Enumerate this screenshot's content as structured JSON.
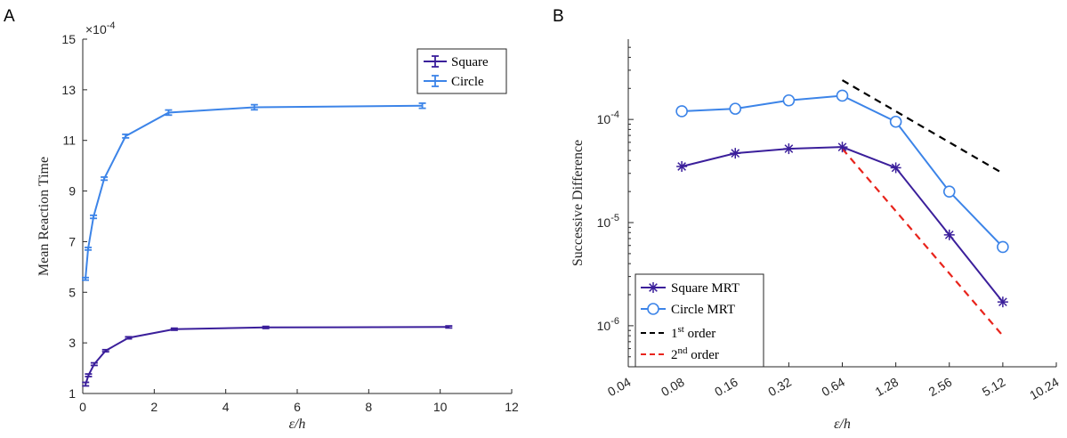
{
  "panels": {
    "A": {
      "letter": "A",
      "chart_data": {
        "type": "line",
        "xlabel": "ε/h",
        "ylabel": "Mean Reaction Time",
        "xlim": [
          0,
          12
        ],
        "ylim": [
          1,
          15
        ],
        "xticks": [
          0,
          2,
          4,
          6,
          8,
          10,
          12
        ],
        "yticks": [
          1,
          3,
          5,
          7,
          9,
          11,
          13,
          15
        ],
        "y_multiplier_base": "×10",
        "y_multiplier_exp": "-4",
        "legend_position": "top-right",
        "error_bars": true,
        "series": [
          {
            "name": "Square",
            "color": "#3b1f9b",
            "x": [
              0.08,
              0.16,
              0.32,
              0.64,
              1.28,
              2.56,
              5.12,
              10.24
            ],
            "y": [
              1.37,
              1.72,
              2.16,
              2.69,
              3.2,
              3.54,
              3.61,
              3.63
            ],
            "err": [
              0.07,
              0.05,
              0.05,
              0.04,
              0.04,
              0.04,
              0.04,
              0.04
            ]
          },
          {
            "name": "Circle",
            "color": "#3c84e8",
            "x": [
              0.075,
              0.15,
              0.3,
              0.6,
              1.2,
              2.4,
              4.8,
              9.5
            ],
            "y": [
              5.53,
              6.72,
              7.98,
              9.49,
              11.17,
              12.1,
              12.31,
              12.37
            ],
            "err": [
              0.05,
              0.05,
              0.06,
              0.06,
              0.07,
              0.1,
              0.1,
              0.1
            ]
          }
        ]
      }
    },
    "B": {
      "letter": "B",
      "chart_data": {
        "type": "line",
        "xlabel": "ε/h",
        "ylabel": "Successive Difference",
        "x_scale": "log2",
        "y_scale": "log",
        "xlim": [
          0.04,
          10.24
        ],
        "ylim": [
          4e-07,
          0.0006
        ],
        "xticks": [
          "0.04",
          "0.08",
          "0.16",
          "0.32",
          "0.64",
          "1.28",
          "2.56",
          "5.12",
          "10.24"
        ],
        "yticks": [
          {
            "value": 1e-06,
            "base": "10",
            "exp": "-6"
          },
          {
            "value": 1e-05,
            "base": "10",
            "exp": "-5"
          },
          {
            "value": 0.0001,
            "base": "10",
            "exp": "-4"
          }
        ],
        "legend_position": "bottom-left",
        "series": [
          {
            "name": "Square MRT",
            "color": "#3b1f9b",
            "marker": "asterisk",
            "x": [
              0.08,
              0.16,
              0.32,
              0.64,
              1.28,
              2.56,
              5.12
            ],
            "y": [
              3.5e-05,
              4.7e-05,
              5.2e-05,
              5.4e-05,
              3.4e-05,
              7.6e-06,
              1.7e-06
            ]
          },
          {
            "name": "Circle MRT",
            "color": "#3c84e8",
            "marker": "circle",
            "x": [
              0.08,
              0.16,
              0.32,
              0.64,
              1.28,
              2.56,
              5.12
            ],
            "y": [
              0.00012,
              0.000127,
              0.000153,
              0.00017,
              9.5e-05,
              2e-05,
              5.8e-06
            ]
          }
        ],
        "reference_lines": [
          {
            "label": "1st order",
            "label_base": "1",
            "label_sup": "st",
            "label_tail": " order",
            "color": "#000000",
            "x": [
              0.64,
              5.12
            ],
            "y": [
              0.00024,
              3e-05
            ]
          },
          {
            "label": "2nd order",
            "label_base": "2",
            "label_sup": "nd",
            "label_tail": " order",
            "color": "#e8241c",
            "x": [
              0.64,
              5.12
            ],
            "y": [
              5.2e-05,
              8e-07
            ]
          }
        ]
      }
    }
  }
}
